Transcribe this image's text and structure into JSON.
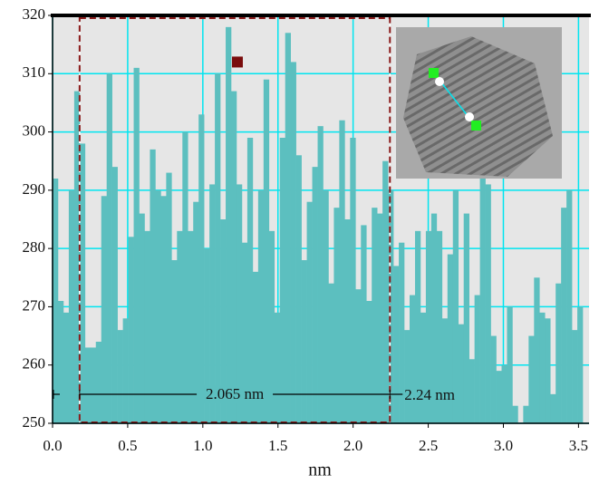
{
  "chart_data": {
    "type": "histogram",
    "x_label": "nm",
    "bins": [
      0,
      0.036,
      0.072,
      0.108,
      0.144,
      0.18,
      0.216,
      0.252,
      0.288,
      0.324,
      0.36,
      0.396,
      0.432,
      0.468,
      0.504,
      0.54,
      0.576,
      0.612,
      0.648,
      0.684,
      0.72,
      0.756,
      0.792,
      0.828,
      0.864,
      0.9,
      0.936,
      0.972,
      1.008,
      1.044,
      1.08,
      1.116,
      1.152,
      1.188,
      1.224,
      1.26,
      1.296,
      1.332,
      1.368,
      1.404,
      1.44,
      1.476,
      1.512,
      1.548,
      1.584,
      1.62,
      1.656,
      1.692,
      1.728,
      1.764,
      1.8,
      1.836,
      1.872,
      1.908,
      1.944,
      1.98,
      2.016,
      2.052,
      2.088,
      2.124,
      2.16,
      2.196,
      2.232,
      2.268,
      2.304,
      2.34,
      2.376,
      2.412,
      2.448,
      2.484,
      2.52,
      2.556,
      2.592,
      2.628,
      2.664,
      2.7,
      2.736,
      2.772,
      2.808,
      2.844,
      2.88,
      2.916,
      2.952,
      2.988,
      3.024,
      3.06,
      3.096,
      3.132,
      3.168,
      3.204,
      3.24,
      3.276,
      3.312,
      3.348,
      3.384,
      3.42,
      3.456,
      3.492,
      3.528
    ],
    "values": [
      292,
      271,
      269,
      290,
      307,
      298,
      263,
      263,
      264,
      289,
      310,
      294,
      266,
      268,
      282,
      311,
      286,
      283,
      297,
      290,
      289,
      293,
      278,
      283,
      300,
      283,
      288,
      303,
      280,
      291,
      310,
      285,
      318,
      307,
      291,
      281,
      299,
      276,
      290,
      309,
      283,
      269,
      299,
      317,
      312,
      296,
      278,
      288,
      294,
      301,
      290,
      274,
      287,
      302,
      285,
      299,
      273,
      284,
      271,
      287,
      286,
      295,
      290,
      277,
      281,
      266,
      272,
      283,
      269,
      283,
      286,
      283,
      268,
      279,
      290,
      267,
      286,
      261,
      272,
      293,
      291,
      265,
      259,
      260,
      270,
      253,
      250,
      253,
      265,
      275,
      269,
      268,
      255,
      274,
      287,
      290,
      266,
      270
    ],
    "color": "#5cbfbf",
    "xlim": [
      0,
      3.57
    ],
    "ylim": [
      250,
      320
    ],
    "xticks": [
      {
        "value": 0,
        "label": "0.0"
      },
      {
        "value": 0.5,
        "label": "0.5"
      },
      {
        "value": 1,
        "label": "1.0"
      },
      {
        "value": 1.5,
        "label": "1.5"
      },
      {
        "value": 2,
        "label": "2.0"
      },
      {
        "value": 2.5,
        "label": "2.5"
      },
      {
        "value": 3,
        "label": "3.0"
      },
      {
        "value": 3.5,
        "label": "3.5"
      }
    ],
    "yticks": [
      250,
      260,
      270,
      280,
      290,
      300,
      310,
      320
    ],
    "grid": true,
    "grid_color": "#00e5f0",
    "marked_region": {
      "x": [
        0.18,
        2.245
      ],
      "color": "#8b1a1a"
    },
    "marker": {
      "x": 1.23,
      "y": 312,
      "color": "#7a0c0c"
    },
    "annotations": [
      "2.065 nm",
      "2.24 nm"
    ]
  }
}
